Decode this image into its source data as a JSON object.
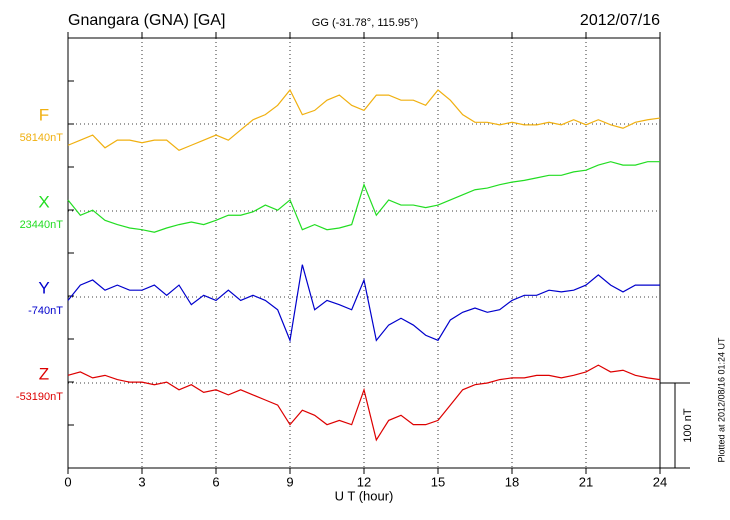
{
  "chart_data": {
    "type": "line",
    "title": "Gnangara (GNA)  [GA]",
    "subtitle": "GG (-31.78°, 115.95°)",
    "date": "2012/07/16",
    "x_label": "U T (hour)",
    "footer": "Plotted at 2012/08/16 01:24  UT",
    "scale_bar": {
      "value": 100,
      "label": "100 nT"
    },
    "xlim": [
      0,
      24
    ],
    "xticks": [
      0,
      3,
      6,
      9,
      12,
      15,
      18,
      21,
      24
    ],
    "grid": true,
    "x": [
      0,
      0.5,
      1,
      1.5,
      2,
      2.5,
      3,
      3.5,
      4,
      4.5,
      5,
      5.5,
      6,
      6.5,
      7,
      7.5,
      8,
      8.5,
      9,
      9.5,
      10,
      10.5,
      11,
      11.5,
      12,
      12.5,
      13,
      13.5,
      14,
      14.5,
      15,
      15.5,
      16,
      16.5,
      17,
      17.5,
      18,
      18.5,
      19,
      19.5,
      20,
      20.5,
      21,
      21.5,
      22,
      22.5,
      23,
      23.5,
      24
    ],
    "series": [
      {
        "name": "F",
        "color": "#f0b010",
        "baseline": {
          "value": 58140,
          "label": "58140nT"
        },
        "values": [
          58115,
          58121,
          58127,
          58112,
          58121,
          58121,
          58118,
          58121,
          58121,
          58109,
          58115,
          58121,
          58127,
          58121,
          58133,
          58145,
          58151,
          58162,
          58180,
          58151,
          58156,
          58168,
          58174,
          58162,
          58156,
          58174,
          58174,
          58168,
          58168,
          58162,
          58180,
          58168,
          58151,
          58142,
          58142,
          58139,
          58142,
          58139,
          58139,
          58142,
          58139,
          58145,
          58139,
          58145,
          58139,
          58135,
          58142,
          58145,
          58147
        ]
      },
      {
        "name": "X",
        "color": "#22dd22",
        "baseline": {
          "value": 23440,
          "label": "23440nT"
        },
        "values": [
          23453,
          23435,
          23441,
          23429,
          23424,
          23420,
          23418,
          23415,
          23420,
          23424,
          23427,
          23424,
          23429,
          23435,
          23435,
          23439,
          23447,
          23441,
          23453,
          23418,
          23424,
          23418,
          23420,
          23424,
          23471,
          23435,
          23453,
          23447,
          23447,
          23444,
          23447,
          23453,
          23459,
          23465,
          23467,
          23471,
          23474,
          23476,
          23479,
          23482,
          23482,
          23486,
          23488,
          23494,
          23498,
          23494,
          23494,
          23498,
          23498
        ]
      },
      {
        "name": "Y",
        "color": "#0000cc",
        "baseline": {
          "value": -740,
          "label": "-740nT"
        },
        "values": [
          -744,
          -726,
          -720,
          -732,
          -726,
          -732,
          -732,
          -726,
          -738,
          -726,
          -749,
          -738,
          -744,
          -732,
          -744,
          -738,
          -744,
          -755,
          -791,
          -702,
          -755,
          -744,
          -749,
          -755,
          -720,
          -791,
          -773,
          -765,
          -773,
          -785,
          -791,
          -767,
          -758,
          -753,
          -758,
          -755,
          -744,
          -738,
          -738,
          -732,
          -734,
          -732,
          -726,
          -714,
          -726,
          -734,
          -726,
          -726,
          -726
        ]
      },
      {
        "name": "Z",
        "color": "#dd0000",
        "baseline": {
          "value": -53190,
          "label": "-53190nT"
        },
        "values": [
          -53181,
          -53177,
          -53184,
          -53181,
          -53186,
          -53189,
          -53189,
          -53192,
          -53189,
          -53198,
          -53192,
          -53201,
          -53198,
          -53204,
          -53198,
          -53204,
          -53210,
          -53216,
          -53239,
          -53222,
          -53228,
          -53239,
          -53234,
          -53239,
          -53198,
          -53257,
          -53234,
          -53228,
          -53239,
          -53239,
          -53234,
          -53216,
          -53198,
          -53192,
          -53190,
          -53186,
          -53184,
          -53184,
          -53181,
          -53181,
          -53184,
          -53181,
          -53177,
          -53169,
          -53177,
          -53175,
          -53181,
          -53184,
          -53186
        ]
      }
    ]
  }
}
